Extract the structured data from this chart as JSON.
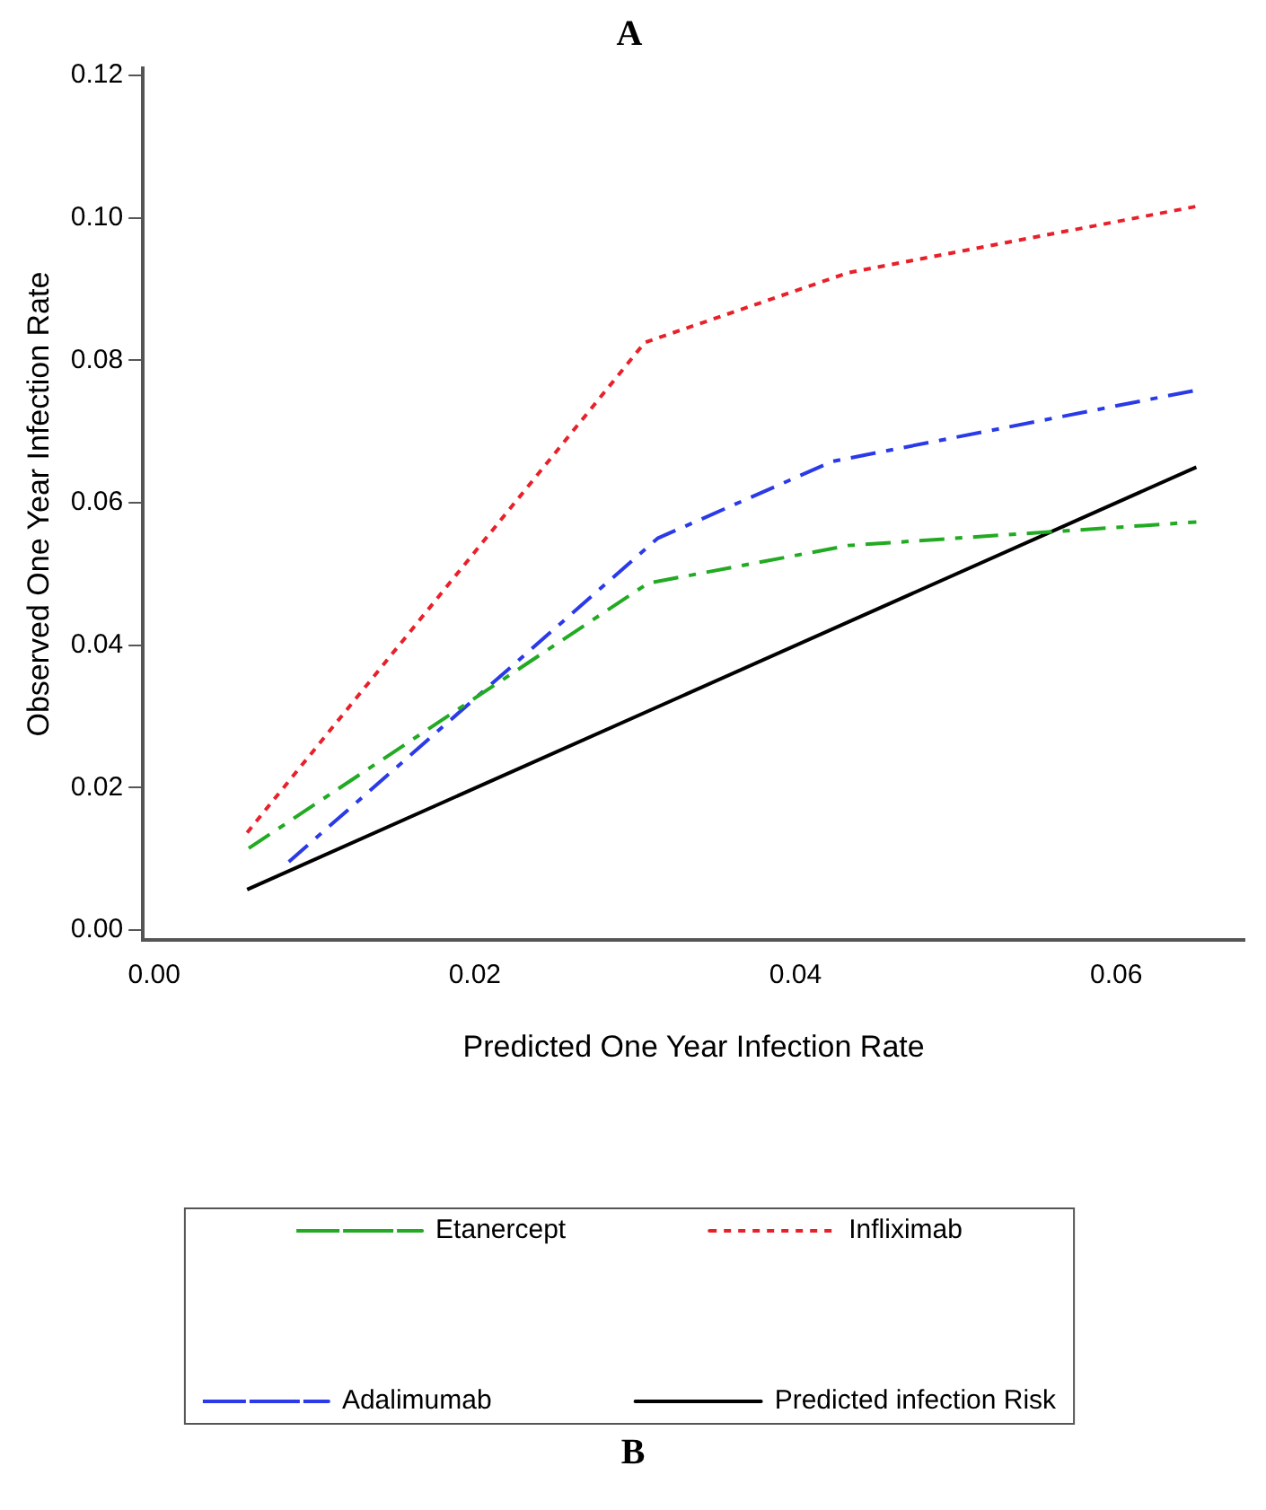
{
  "chart_data": {
    "type": "line",
    "title": "A",
    "xlabel": "Predicted One Year Infection Rate",
    "ylabel": "Observed One Year Infection Rate",
    "annotations": [
      "B"
    ],
    "xlim": [
      -0.0007,
      0.068
    ],
    "xticks": [
      {
        "value": 0,
        "label": "0.00"
      },
      {
        "value": 0.02,
        "label": "0.02"
      },
      {
        "value": 0.04,
        "label": "0.04"
      },
      {
        "value": 0.06,
        "label": "0.06"
      }
    ],
    "ylim": [
      -0.0014,
      0.121
    ],
    "yticks": [
      {
        "value": 0,
        "label": "0.00"
      },
      {
        "value": 0.02,
        "label": "0.02"
      },
      {
        "value": 0.04,
        "label": "0.04"
      },
      {
        "value": 0.06,
        "label": "0.06"
      },
      {
        "value": 0.08,
        "label": "0.08"
      },
      {
        "value": 0.1,
        "label": "0.10"
      },
      {
        "value": 0.12,
        "label": "0.12"
      }
    ],
    "grid": false,
    "legend": "bottom",
    "marker": "none",
    "series": [
      {
        "name": "Etanercept",
        "color": "#22aa22",
        "line_style": "dashed",
        "x": [
          0.0059,
          0.0308,
          0.0433,
          0.065
        ],
        "values": [
          0.0115,
          0.0487,
          0.054,
          0.0573
        ]
      },
      {
        "name": "Infliximab",
        "color": "#e8202a",
        "line_style": "dotted",
        "x": [
          0.0058,
          0.0306,
          0.0433,
          0.065
        ],
        "values": [
          0.0137,
          0.0825,
          0.0923,
          0.1016
        ]
      },
      {
        "name": "Adalimumab",
        "color": "#2a3ae8",
        "line_style": "dashed",
        "x": [
          0.0084,
          0.0314,
          0.0423,
          0.065
        ],
        "values": [
          0.0096,
          0.055,
          0.0658,
          0.0758
        ]
      },
      {
        "name": "Predicted infection Risk",
        "color": "#000000",
        "line_style": "solid",
        "x": [
          0.0058,
          0.065
        ],
        "values": [
          0.0057,
          0.065
        ]
      }
    ]
  }
}
